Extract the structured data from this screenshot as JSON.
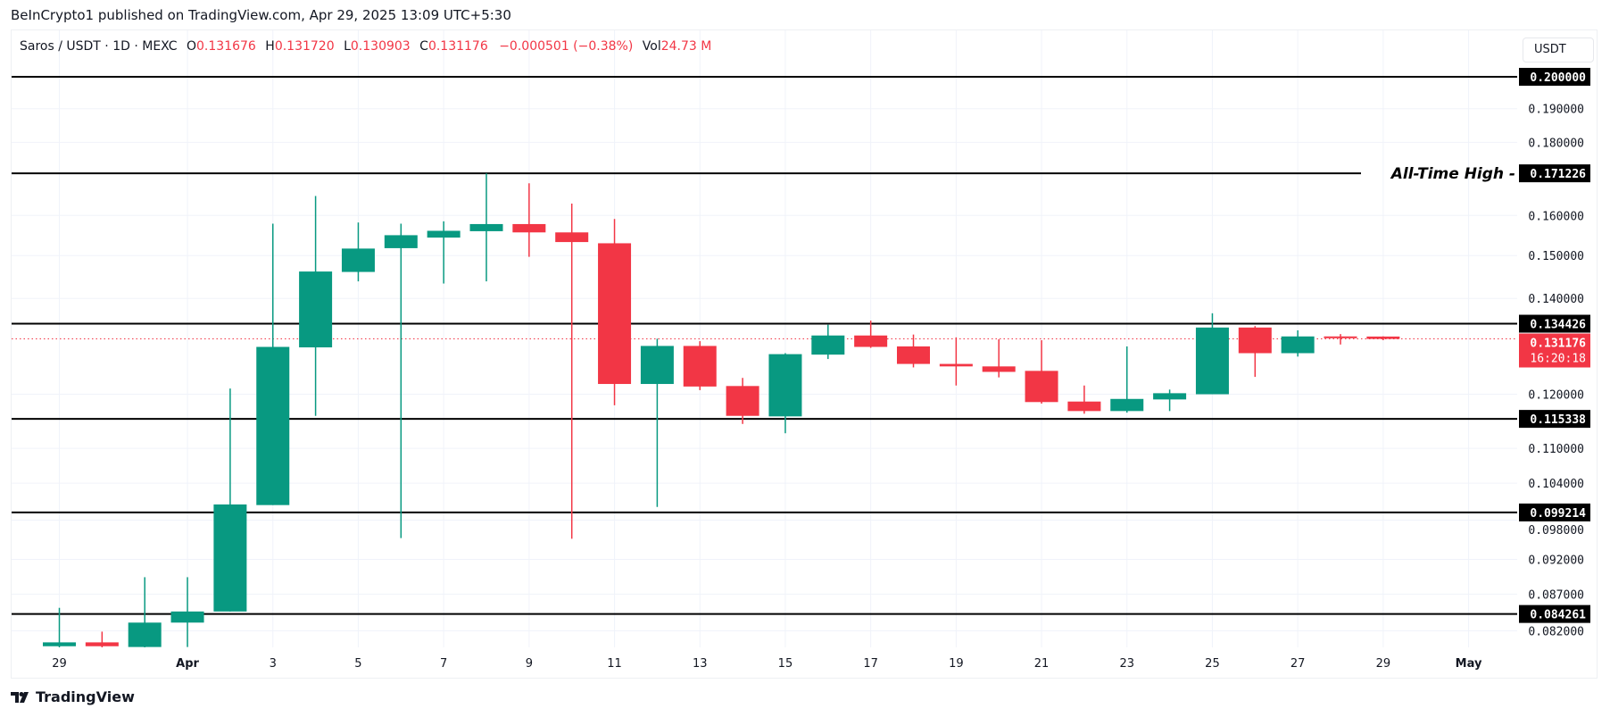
{
  "header": {
    "published": "BeInCrypto1 published on TradingView.com, Apr 29, 2025 13:09 UTC+5:30"
  },
  "legend": {
    "symbol": "Saros / USDT · 1D · MEXC",
    "o_label": "O",
    "o": "0.131676",
    "h_label": "H",
    "h": "0.131720",
    "l_label": "L",
    "l": "0.130903",
    "c_label": "C",
    "c": "0.131176",
    "change": "−0.000501 (−0.38%)",
    "vol_label": "Vol",
    "vol": "24.73 M"
  },
  "price_axis": {
    "currency": "USDT"
  },
  "logo": {
    "text": "TradingView"
  },
  "colors": {
    "up": "#089981",
    "down": "#F23645",
    "level": "#000000",
    "grid": "#f0f3fa"
  },
  "chart_data": {
    "type": "candlestick",
    "scale": "log",
    "ylim": [
      0.08,
      0.205
    ],
    "grid": true,
    "x_tick_labels": [
      {
        "date": "2025-03-29",
        "label": "29"
      },
      {
        "date": "2025-04-01",
        "label": "Apr"
      },
      {
        "date": "2025-04-03",
        "label": "3"
      },
      {
        "date": "2025-04-05",
        "label": "5"
      },
      {
        "date": "2025-04-07",
        "label": "7"
      },
      {
        "date": "2025-04-09",
        "label": "9"
      },
      {
        "date": "2025-04-11",
        "label": "11"
      },
      {
        "date": "2025-04-13",
        "label": "13"
      },
      {
        "date": "2025-04-15",
        "label": "15"
      },
      {
        "date": "2025-04-17",
        "label": "17"
      },
      {
        "date": "2025-04-19",
        "label": "19"
      },
      {
        "date": "2025-04-21",
        "label": "21"
      },
      {
        "date": "2025-04-23",
        "label": "23"
      },
      {
        "date": "2025-04-25",
        "label": "25"
      },
      {
        "date": "2025-04-27",
        "label": "27"
      },
      {
        "date": "2025-04-29",
        "label": "29"
      },
      {
        "date": "2025-05-01",
        "label": "May"
      }
    ],
    "y_tick_labels": [
      "0.190000",
      "0.180000",
      "0.160000",
      "0.150000",
      "0.140000",
      "0.120000",
      "0.110000",
      "0.104000",
      "0.098000",
      "0.092000",
      "0.087000",
      "0.082000"
    ],
    "candles": [
      {
        "date": "2025-03-29",
        "o": 0.08,
        "h": 0.0851,
        "l": 0.0796,
        "c": 0.0805
      },
      {
        "date": "2025-03-30",
        "o": 0.0805,
        "h": 0.0819,
        "l": 0.0795,
        "c": 0.08
      },
      {
        "date": "2025-03-31",
        "o": 0.0799,
        "h": 0.0894,
        "l": 0.0795,
        "c": 0.0831
      },
      {
        "date": "2025-04-01",
        "o": 0.0831,
        "h": 0.0894,
        "l": 0.0799,
        "c": 0.0846
      },
      {
        "date": "2025-04-02",
        "o": 0.0846,
        "h": 0.1211,
        "l": 0.0846,
        "c": 0.1005
      },
      {
        "date": "2025-04-03",
        "o": 0.1004,
        "h": 0.1579,
        "l": 0.1004,
        "c": 0.1295
      },
      {
        "date": "2025-04-04",
        "o": 0.1294,
        "h": 0.1651,
        "l": 0.1159,
        "c": 0.1462
      },
      {
        "date": "2025-04-05",
        "o": 0.1461,
        "h": 0.1582,
        "l": 0.1439,
        "c": 0.1517
      },
      {
        "date": "2025-04-06",
        "o": 0.1518,
        "h": 0.1579,
        "l": 0.0952,
        "c": 0.155
      },
      {
        "date": "2025-04-07",
        "o": 0.1544,
        "h": 0.1585,
        "l": 0.1434,
        "c": 0.1561
      },
      {
        "date": "2025-04-08",
        "o": 0.156,
        "h": 0.1712,
        "l": 0.1439,
        "c": 0.1578
      },
      {
        "date": "2025-04-09",
        "o": 0.1578,
        "h": 0.1685,
        "l": 0.1497,
        "c": 0.1557
      },
      {
        "date": "2025-04-10",
        "o": 0.1557,
        "h": 0.1631,
        "l": 0.0951,
        "c": 0.1533
      },
      {
        "date": "2025-04-11",
        "o": 0.153,
        "h": 0.1591,
        "l": 0.1179,
        "c": 0.122
      },
      {
        "date": "2025-04-12",
        "o": 0.122,
        "h": 0.1312,
        "l": 0.1001,
        "c": 0.1297
      },
      {
        "date": "2025-04-13",
        "o": 0.1297,
        "h": 0.1307,
        "l": 0.1208,
        "c": 0.1215
      },
      {
        "date": "2025-04-14",
        "o": 0.1216,
        "h": 0.1232,
        "l": 0.1144,
        "c": 0.1159
      },
      {
        "date": "2025-04-15",
        "o": 0.1158,
        "h": 0.1282,
        "l": 0.1127,
        "c": 0.128
      },
      {
        "date": "2025-04-16",
        "o": 0.1279,
        "h": 0.1342,
        "l": 0.127,
        "c": 0.1319
      },
      {
        "date": "2025-04-17",
        "o": 0.1319,
        "h": 0.1351,
        "l": 0.1293,
        "c": 0.1295
      },
      {
        "date": "2025-04-18",
        "o": 0.1296,
        "h": 0.1321,
        "l": 0.1253,
        "c": 0.126
      },
      {
        "date": "2025-04-19",
        "o": 0.126,
        "h": 0.1315,
        "l": 0.1217,
        "c": 0.1255
      },
      {
        "date": "2025-04-20",
        "o": 0.1255,
        "h": 0.1311,
        "l": 0.1233,
        "c": 0.1244
      },
      {
        "date": "2025-04-21",
        "o": 0.1246,
        "h": 0.1309,
        "l": 0.1182,
        "c": 0.1185
      },
      {
        "date": "2025-04-22",
        "o": 0.1186,
        "h": 0.1217,
        "l": 0.1163,
        "c": 0.1168
      },
      {
        "date": "2025-04-23",
        "o": 0.1168,
        "h": 0.1296,
        "l": 0.1165,
        "c": 0.1191
      },
      {
        "date": "2025-04-24",
        "o": 0.119,
        "h": 0.1209,
        "l": 0.1168,
        "c": 0.1202
      },
      {
        "date": "2025-04-25",
        "o": 0.12,
        "h": 0.1367,
        "l": 0.12,
        "c": 0.1336
      },
      {
        "date": "2025-04-26",
        "o": 0.1336,
        "h": 0.1339,
        "l": 0.1234,
        "c": 0.1282
      },
      {
        "date": "2025-04-27",
        "o": 0.1282,
        "h": 0.133,
        "l": 0.1275,
        "c": 0.1317
      },
      {
        "date": "2025-04-28",
        "o": 0.1317,
        "h": 0.1322,
        "l": 0.13,
        "c": 0.1314
      },
      {
        "date": "2025-04-29",
        "o": 0.131676,
        "h": 0.13172,
        "l": 0.130903,
        "c": 0.131176
      }
    ],
    "levels": [
      {
        "value": 0.2,
        "label": "0.200000",
        "annotation": ""
      },
      {
        "value": 0.171226,
        "label": "0.171226",
        "annotation": "All-Time High -"
      },
      {
        "value": 0.134426,
        "label": "0.134426",
        "annotation": ""
      },
      {
        "value": 0.115338,
        "label": "0.115338",
        "annotation": ""
      },
      {
        "value": 0.099214,
        "label": "0.099214",
        "annotation": ""
      },
      {
        "value": 0.084261,
        "label": "0.084261",
        "annotation": ""
      }
    ],
    "last_price": {
      "value": 0.131176,
      "label": "0.131176",
      "countdown": "16:20:18"
    }
  }
}
